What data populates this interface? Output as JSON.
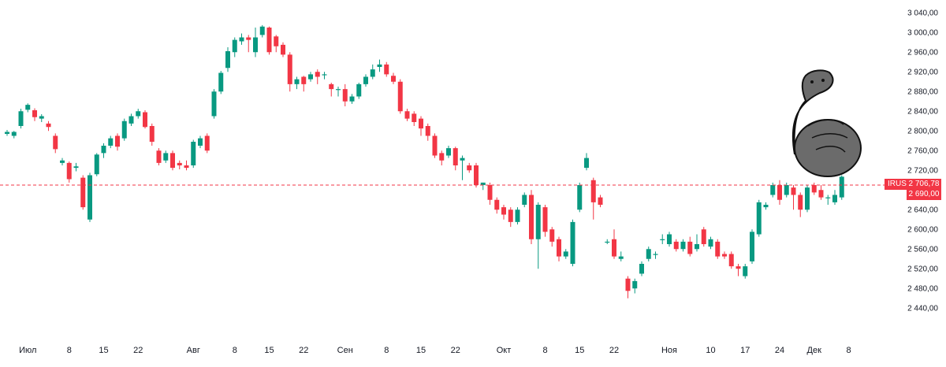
{
  "chart_data": {
    "type": "candlestick",
    "title": "",
    "ticker": "IRUS",
    "last_price": "2 706,78",
    "ref_level": "2 690,00",
    "ref_value": 2690,
    "last_value": 2706.78,
    "ylim": [
      2410,
      3050
    ],
    "y_ticks": [
      "3 040,00",
      "3 000,00",
      "2 960,00",
      "2 920,00",
      "2 880,00",
      "2 840,00",
      "2 800,00",
      "2 760,00",
      "2 720,00",
      "2 680,00",
      "2 640,00",
      "2 600,00",
      "2 560,00",
      "2 520,00",
      "2 480,00",
      "2 440,00"
    ],
    "y_tick_values": [
      3040,
      3000,
      2960,
      2920,
      2880,
      2840,
      2800,
      2760,
      2720,
      2680,
      2640,
      2600,
      2560,
      2520,
      2480,
      2440
    ],
    "x_ticks": [
      {
        "label": "Июл",
        "i": 3
      },
      {
        "label": "8",
        "i": 9
      },
      {
        "label": "15",
        "i": 14
      },
      {
        "label": "22",
        "i": 19
      },
      {
        "label": "Авг",
        "i": 27
      },
      {
        "label": "8",
        "i": 33
      },
      {
        "label": "15",
        "i": 38
      },
      {
        "label": "22",
        "i": 43
      },
      {
        "label": "Сен",
        "i": 49
      },
      {
        "label": "8",
        "i": 55
      },
      {
        "label": "15",
        "i": 60
      },
      {
        "label": "22",
        "i": 65
      },
      {
        "label": "Окт",
        "i": 72
      },
      {
        "label": "8",
        "i": 78
      },
      {
        "label": "15",
        "i": 83
      },
      {
        "label": "22",
        "i": 88
      },
      {
        "label": "Ноя",
        "i": 96
      },
      {
        "label": "10",
        "i": 102
      },
      {
        "label": "17",
        "i": 107
      },
      {
        "label": "24",
        "i": 112
      },
      {
        "label": "Дек",
        "i": 117
      },
      {
        "label": "8",
        "i": 122
      }
    ],
    "candles": [
      [
        2794,
        2798,
        2790,
        2802
      ],
      [
        2790,
        2798,
        2785,
        2800
      ],
      [
        2810,
        2840,
        2805,
        2845
      ],
      [
        2843,
        2853,
        2838,
        2856
      ],
      [
        2842,
        2828,
        2820,
        2846
      ],
      [
        2825,
        2830,
        2818,
        2834
      ],
      [
        2815,
        2808,
        2800,
        2820
      ],
      [
        2790,
        2763,
        2755,
        2795
      ],
      [
        2735,
        2740,
        2730,
        2745
      ],
      [
        2735,
        2702,
        2695,
        2738
      ],
      [
        2725,
        2728,
        2718,
        2735
      ],
      [
        2705,
        2645,
        2640,
        2710
      ],
      [
        2620,
        2710,
        2615,
        2715
      ],
      [
        2712,
        2752,
        2708,
        2755
      ],
      [
        2755,
        2770,
        2745,
        2775
      ],
      [
        2770,
        2785,
        2765,
        2790
      ],
      [
        2790,
        2768,
        2760,
        2795
      ],
      [
        2785,
        2820,
        2780,
        2825
      ],
      [
        2815,
        2830,
        2810,
        2835
      ],
      [
        2830,
        2840,
        2825,
        2845
      ],
      [
        2838,
        2808,
        2805,
        2842
      ],
      [
        2810,
        2778,
        2770,
        2815
      ],
      [
        2760,
        2735,
        2730,
        2765
      ],
      [
        2740,
        2755,
        2735,
        2760
      ],
      [
        2755,
        2725,
        2720,
        2760
      ],
      [
        2735,
        2730,
        2722,
        2740
      ],
      [
        2730,
        2725,
        2720,
        2740
      ],
      [
        2730,
        2778,
        2725,
        2782
      ],
      [
        2770,
        2785,
        2765,
        2790
      ],
      [
        2790,
        2760,
        2755,
        2795
      ],
      [
        2830,
        2880,
        2825,
        2885
      ],
      [
        2880,
        2918,
        2875,
        2922
      ],
      [
        2928,
        2962,
        2920,
        2970
      ],
      [
        2960,
        2985,
        2950,
        2990
      ],
      [
        2982,
        2990,
        2975,
        2998
      ],
      [
        2990,
        2985,
        2960,
        2995
      ],
      [
        2960,
        2990,
        2950,
        3010
      ],
      [
        2995,
        3012,
        2990,
        3015
      ],
      [
        3010,
        2960,
        2955,
        3012
      ],
      [
        2992,
        2972,
        2960,
        2995
      ],
      [
        2975,
        2955,
        2950,
        2980
      ],
      [
        2955,
        2895,
        2880,
        2960
      ],
      [
        2895,
        2905,
        2885,
        2910
      ],
      [
        2910,
        2895,
        2880,
        2912
      ],
      [
        2905,
        2915,
        2900,
        2920
      ],
      [
        2920,
        2910,
        2895,
        2925
      ],
      [
        2915,
        2915,
        2905,
        2920
      ],
      [
        2895,
        2885,
        2870,
        2898
      ],
      [
        2885,
        2885,
        2870,
        2890
      ],
      [
        2885,
        2860,
        2850,
        2895
      ],
      [
        2860,
        2870,
        2855,
        2875
      ],
      [
        2870,
        2895,
        2865,
        2898
      ],
      [
        2895,
        2910,
        2890,
        2915
      ],
      [
        2910,
        2925,
        2905,
        2935
      ],
      [
        2930,
        2935,
        2920,
        2945
      ],
      [
        2935,
        2915,
        2910,
        2940
      ],
      [
        2912,
        2900,
        2895,
        2918
      ],
      [
        2900,
        2840,
        2835,
        2905
      ],
      [
        2840,
        2825,
        2820,
        2845
      ],
      [
        2835,
        2818,
        2810,
        2840
      ],
      [
        2825,
        2805,
        2790,
        2830
      ],
      [
        2810,
        2790,
        2780,
        2815
      ],
      [
        2790,
        2750,
        2745,
        2795
      ],
      [
        2755,
        2740,
        2730,
        2760
      ],
      [
        2750,
        2765,
        2745,
        2770
      ],
      [
        2765,
        2730,
        2720,
        2768
      ],
      [
        2740,
        2745,
        2700,
        2750
      ],
      [
        2730,
        2720,
        2715,
        2735
      ],
      [
        2730,
        2690,
        2685,
        2735
      ],
      [
        2690,
        2695,
        2680,
        2695
      ],
      [
        2690,
        2660,
        2650,
        2695
      ],
      [
        2660,
        2640,
        2632,
        2665
      ],
      [
        2645,
        2630,
        2620,
        2650
      ],
      [
        2640,
        2615,
        2605,
        2645
      ],
      [
        2615,
        2640,
        2610,
        2645
      ],
      [
        2650,
        2670,
        2645,
        2675
      ],
      [
        2670,
        2580,
        2570,
        2680
      ],
      [
        2580,
        2650,
        2520,
        2655
      ],
      [
        2645,
        2595,
        2585,
        2650
      ],
      [
        2600,
        2575,
        2565,
        2605
      ],
      [
        2580,
        2545,
        2535,
        2585
      ],
      [
        2545,
        2555,
        2540,
        2560
      ],
      [
        2530,
        2615,
        2525,
        2620
      ],
      [
        2640,
        2690,
        2635,
        2695
      ],
      [
        2725,
        2745,
        2720,
        2755
      ],
      [
        2700,
        2655,
        2620,
        2705
      ],
      [
        2665,
        2650,
        2645,
        2670
      ],
      [
        2575,
        2575,
        2570,
        2580
      ],
      [
        2580,
        2545,
        2540,
        2600
      ],
      [
        2540,
        2545,
        2535,
        2555
      ],
      [
        2500,
        2475,
        2460,
        2505
      ],
      [
        2480,
        2495,
        2470,
        2500
      ],
      [
        2510,
        2530,
        2505,
        2535
      ],
      [
        2540,
        2560,
        2535,
        2565
      ],
      [
        2550,
        2550,
        2540,
        2555
      ],
      [
        2580,
        2580,
        2570,
        2590
      ],
      [
        2570,
        2590,
        2565,
        2595
      ],
      [
        2575,
        2560,
        2555,
        2580
      ],
      [
        2560,
        2575,
        2555,
        2580
      ],
      [
        2575,
        2550,
        2545,
        2585
      ],
      [
        2560,
        2570,
        2555,
        2590
      ],
      [
        2600,
        2570,
        2565,
        2605
      ],
      [
        2565,
        2580,
        2560,
        2585
      ],
      [
        2575,
        2545,
        2540,
        2580
      ],
      [
        2550,
        2545,
        2540,
        2555
      ],
      [
        2550,
        2525,
        2520,
        2555
      ],
      [
        2525,
        2520,
        2505,
        2530
      ],
      [
        2505,
        2525,
        2500,
        2530
      ],
      [
        2535,
        2595,
        2530,
        2600
      ],
      [
        2590,
        2655,
        2585,
        2660
      ],
      [
        2645,
        2650,
        2640,
        2655
      ],
      [
        2670,
        2690,
        2665,
        2695
      ],
      [
        2690,
        2660,
        2650,
        2700
      ],
      [
        2670,
        2690,
        2665,
        2695
      ],
      [
        2685,
        2670,
        2640,
        2690
      ],
      [
        2670,
        2640,
        2625,
        2675
      ],
      [
        2640,
        2685,
        2635,
        2690
      ],
      [
        2690,
        2675,
        2670,
        2695
      ],
      [
        2680,
        2665,
        2660,
        2690
      ],
      [
        2665,
        2665,
        2650,
        2670
      ],
      [
        2655,
        2670,
        2650,
        2680
      ],
      [
        2665,
        2707,
        2660,
        2710
      ]
    ]
  }
}
